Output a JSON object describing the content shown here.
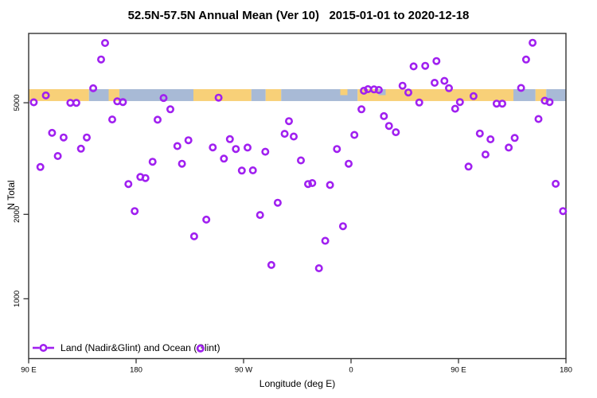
{
  "header": {
    "title": "52.5N-57.5N Annual Mean (Ver 10)   2015-01-01 to 2020-12-18"
  },
  "legend": {
    "label": "Land (Nadir&Glint) and Ocean (Glint)",
    "marker": "open-circle-on-line",
    "position": "bottom-left-inside"
  },
  "colors": {
    "marker": "#A020F0",
    "land": "#F8D078",
    "ocean": "#A8BAD6",
    "axis": "#333333",
    "text": "#000000"
  },
  "chart_data": {
    "type": "scatter",
    "title": "52.5N-57.5N Annual Mean (Ver 10)",
    "date_range": "2015-01-01 to 2020-12-18",
    "xlabel": "Longitude (deg E)",
    "ylabel": "N Total",
    "grid": "off",
    "legend_position": "bottom-left-inside",
    "x_axis": {
      "min": 90,
      "max": 540,
      "note": "longitude axis wraps: 90E to 180 to 90W to 0 to 90E to 180",
      "ticks": [
        {
          "x": 90,
          "label": "90 E"
        },
        {
          "x": 180,
          "label": "180"
        },
        {
          "x": 270,
          "label": "90 W"
        },
        {
          "x": 360,
          "label": "0"
        },
        {
          "x": 450,
          "label": "90 E"
        },
        {
          "x": 540,
          "label": "180"
        }
      ]
    },
    "y_axis": {
      "scale": "log",
      "min": 612,
      "max": 8834,
      "ticks": [
        {
          "value": 5000,
          "label": "5000"
        },
        {
          "value": 2000,
          "label": "2000"
        },
        {
          "value": 1000,
          "label": "1000"
        }
      ]
    },
    "map_strip": {
      "description": "land(orange)/ocean(blue) mask band drawn across the plot near N=5000",
      "value_top": 5590,
      "value_bottom": 5070,
      "segments": [
        [
          90,
          140.5,
          "land",
          "full"
        ],
        [
          140.5,
          157,
          "ocean",
          "full"
        ],
        [
          157,
          166,
          "land",
          "full"
        ],
        [
          166,
          228,
          "ocean",
          "full"
        ],
        [
          228,
          276.5,
          "land",
          "full"
        ],
        [
          276.5,
          288.5,
          "ocean",
          "full"
        ],
        [
          288.5,
          301.5,
          "land",
          "full"
        ],
        [
          301.5,
          351,
          "ocean",
          "full"
        ],
        [
          351,
          357,
          "land",
          "top"
        ],
        [
          357,
          365.5,
          "ocean",
          "full"
        ],
        [
          365.5,
          383,
          "land",
          "full"
        ],
        [
          383,
          389,
          "ocean",
          "top"
        ],
        [
          389,
          496,
          "land",
          "full"
        ],
        [
          496,
          514.5,
          "ocean",
          "full"
        ],
        [
          514.5,
          523.5,
          "land",
          "full"
        ],
        [
          523.5,
          540,
          "ocean",
          "full"
        ]
      ]
    },
    "series": [
      {
        "name": "Land (Nadir&Glint) and Ocean (Glint)",
        "marker": "open-circle",
        "points": [
          [
            94.3,
            5020
          ],
          [
            99.8,
            2950
          ],
          [
            104.4,
            5310
          ],
          [
            109.6,
            3905
          ],
          [
            114.4,
            3230
          ],
          [
            119.3,
            3760
          ],
          [
            124.9,
            4995
          ],
          [
            129.9,
            4995
          ],
          [
            133.8,
            3430
          ],
          [
            138.7,
            3760
          ],
          [
            144.1,
            5630
          ],
          [
            150.7,
            7135
          ],
          [
            154.0,
            8170
          ],
          [
            160.0,
            4360
          ],
          [
            164.2,
            5060
          ],
          [
            168.9,
            5030
          ],
          [
            173.5,
            2565
          ],
          [
            178.8,
            2055
          ],
          [
            183.5,
            2720
          ],
          [
            187.8,
            2695
          ],
          [
            193.8,
            3080
          ],
          [
            198.0,
            4350
          ],
          [
            203.0,
            5200
          ],
          [
            208.7,
            4740
          ],
          [
            214.5,
            3505
          ],
          [
            218.4,
            3030
          ],
          [
            223.8,
            3675
          ],
          [
            228.6,
            1670
          ],
          [
            233.9,
            665
          ],
          [
            238.8,
            1915
          ],
          [
            244.2,
            3465
          ],
          [
            249.1,
            5215
          ],
          [
            253.5,
            3160
          ],
          [
            258.5,
            3710
          ],
          [
            263.5,
            3420
          ],
          [
            268.5,
            2865
          ],
          [
            273.3,
            3460
          ],
          [
            277.8,
            2870
          ],
          [
            283.8,
            1990
          ],
          [
            288.2,
            3345
          ],
          [
            293.3,
            1320
          ],
          [
            298.6,
            2200
          ],
          [
            304.4,
            3875
          ],
          [
            308.0,
            4300
          ],
          [
            312.0,
            3790
          ],
          [
            318.0,
            3115
          ],
          [
            324.0,
            2565
          ],
          [
            327.5,
            2585
          ],
          [
            333.1,
            1285
          ],
          [
            338.4,
            1610
          ],
          [
            342.4,
            2545
          ],
          [
            348.2,
            3420
          ],
          [
            353.3,
            1815
          ],
          [
            358.0,
            3030
          ],
          [
            362.8,
            3840
          ],
          [
            368.7,
            4740
          ],
          [
            370.7,
            5520
          ],
          [
            374.2,
            5590
          ],
          [
            379.3,
            5580
          ],
          [
            383.3,
            5555
          ],
          [
            387.5,
            4480
          ],
          [
            391.8,
            4135
          ],
          [
            397.5,
            3925
          ],
          [
            403.1,
            5750
          ],
          [
            408.0,
            5440
          ],
          [
            412.4,
            6740
          ],
          [
            417.1,
            5010
          ],
          [
            422.1,
            6770
          ],
          [
            430.0,
            5890
          ],
          [
            431.5,
            7040
          ],
          [
            438.2,
            5985
          ],
          [
            442.0,
            5635
          ],
          [
            447.2,
            4760
          ],
          [
            451.2,
            5030
          ],
          [
            458.4,
            2960
          ],
          [
            462.6,
            5280
          ],
          [
            467.9,
            3885
          ],
          [
            472.6,
            3270
          ],
          [
            476.8,
            3705
          ],
          [
            481.9,
            4965
          ],
          [
            486.7,
            4965
          ],
          [
            492.1,
            3460
          ],
          [
            497.1,
            3745
          ],
          [
            502.4,
            5645
          ],
          [
            506.6,
            7130
          ],
          [
            512.1,
            8185
          ],
          [
            517.0,
            4375
          ],
          [
            522.3,
            5085
          ],
          [
            526.3,
            5030
          ],
          [
            531.4,
            2570
          ],
          [
            537.5,
            2055
          ]
        ]
      }
    ]
  }
}
